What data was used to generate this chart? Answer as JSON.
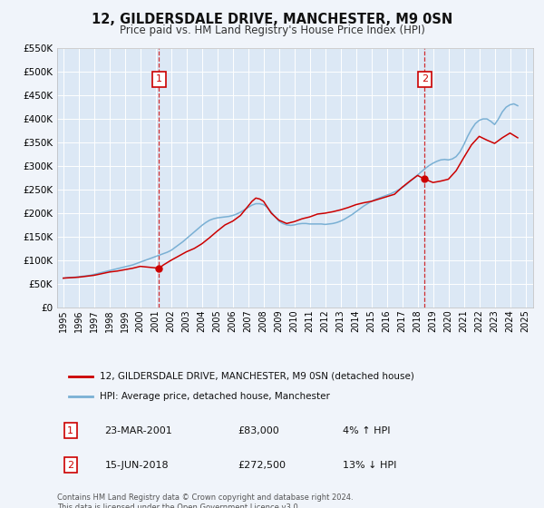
{
  "title": "12, GILDERSDALE DRIVE, MANCHESTER, M9 0SN",
  "subtitle": "Price paid vs. HM Land Registry's House Price Index (HPI)",
  "background_color": "#f0f4fa",
  "plot_bg_color": "#dce8f5",
  "ylim": [
    0,
    550000
  ],
  "yticks": [
    0,
    50000,
    100000,
    150000,
    200000,
    250000,
    300000,
    350000,
    400000,
    450000,
    500000,
    550000
  ],
  "ytick_labels": [
    "£0",
    "£50K",
    "£100K",
    "£150K",
    "£200K",
    "£250K",
    "£300K",
    "£350K",
    "£400K",
    "£450K",
    "£500K",
    "£550K"
  ],
  "xlim_start": 1994.6,
  "xlim_end": 2025.5,
  "xticks": [
    1995,
    1996,
    1997,
    1998,
    1999,
    2000,
    2001,
    2002,
    2003,
    2004,
    2005,
    2006,
    2007,
    2008,
    2009,
    2010,
    2011,
    2012,
    2013,
    2014,
    2015,
    2016,
    2017,
    2018,
    2019,
    2020,
    2021,
    2022,
    2023,
    2024,
    2025
  ],
  "marker1_x": 2001.22,
  "marker1_y": 83000,
  "marker1_label": "1",
  "marker1_date": "23-MAR-2001",
  "marker1_price": "£83,000",
  "marker1_hpi": "4% ↑ HPI",
  "marker2_x": 2018.45,
  "marker2_y": 272500,
  "marker2_label": "2",
  "marker2_date": "15-JUN-2018",
  "marker2_price": "£272,500",
  "marker2_hpi": "13% ↓ HPI",
  "vline1_x": 2001.22,
  "vline2_x": 2018.45,
  "red_line_color": "#cc0000",
  "blue_line_color": "#7ab0d4",
  "legend_label_red": "12, GILDERSDALE DRIVE, MANCHESTER, M9 0SN (detached house)",
  "legend_label_blue": "HPI: Average price, detached house, Manchester",
  "footer_text": "Contains HM Land Registry data © Crown copyright and database right 2024.\nThis data is licensed under the Open Government Licence v3.0.",
  "hpi_x": [
    1995.0,
    1995.25,
    1995.5,
    1995.75,
    1996.0,
    1996.25,
    1996.5,
    1996.75,
    1997.0,
    1997.25,
    1997.5,
    1997.75,
    1998.0,
    1998.25,
    1998.5,
    1998.75,
    1999.0,
    1999.25,
    1999.5,
    1999.75,
    2000.0,
    2000.25,
    2000.5,
    2000.75,
    2001.0,
    2001.25,
    2001.5,
    2001.75,
    2002.0,
    2002.25,
    2002.5,
    2002.75,
    2003.0,
    2003.25,
    2003.5,
    2003.75,
    2004.0,
    2004.25,
    2004.5,
    2004.75,
    2005.0,
    2005.25,
    2005.5,
    2005.75,
    2006.0,
    2006.25,
    2006.5,
    2006.75,
    2007.0,
    2007.25,
    2007.5,
    2007.75,
    2008.0,
    2008.25,
    2008.5,
    2008.75,
    2009.0,
    2009.25,
    2009.5,
    2009.75,
    2010.0,
    2010.25,
    2010.5,
    2010.75,
    2011.0,
    2011.25,
    2011.5,
    2011.75,
    2012.0,
    2012.25,
    2012.5,
    2012.75,
    2013.0,
    2013.25,
    2013.5,
    2013.75,
    2014.0,
    2014.25,
    2014.5,
    2014.75,
    2015.0,
    2015.25,
    2015.5,
    2015.75,
    2016.0,
    2016.25,
    2016.5,
    2016.75,
    2017.0,
    2017.25,
    2017.5,
    2017.75,
    2018.0,
    2018.25,
    2018.5,
    2018.75,
    2019.0,
    2019.25,
    2019.5,
    2019.75,
    2020.0,
    2020.25,
    2020.5,
    2020.75,
    2021.0,
    2021.25,
    2021.5,
    2021.75,
    2022.0,
    2022.25,
    2022.5,
    2022.75,
    2023.0,
    2023.25,
    2023.5,
    2023.75,
    2024.0,
    2024.25,
    2024.5
  ],
  "hpi_y": [
    62000,
    63000,
    63500,
    64000,
    65000,
    66000,
    67000,
    68000,
    70000,
    72000,
    74000,
    76000,
    78000,
    80000,
    82000,
    84000,
    86000,
    88000,
    90000,
    93000,
    96000,
    99000,
    102000,
    105000,
    108000,
    111000,
    114000,
    117000,
    121000,
    127000,
    133000,
    139000,
    146000,
    153000,
    160000,
    167000,
    174000,
    180000,
    185000,
    188000,
    190000,
    191000,
    192000,
    193000,
    195000,
    198000,
    202000,
    207000,
    212000,
    217000,
    220000,
    220000,
    218000,
    212000,
    202000,
    192000,
    183000,
    178000,
    175000,
    174000,
    175000,
    177000,
    178000,
    178000,
    177000,
    177000,
    177000,
    177000,
    176000,
    177000,
    178000,
    180000,
    183000,
    187000,
    192000,
    197000,
    203000,
    209000,
    215000,
    220000,
    225000,
    229000,
    232000,
    235000,
    238000,
    241000,
    245000,
    249000,
    254000,
    260000,
    267000,
    274000,
    281000,
    288000,
    295000,
    301000,
    306000,
    310000,
    313000,
    314000,
    313000,
    315000,
    320000,
    330000,
    345000,
    363000,
    378000,
    390000,
    397000,
    400000,
    400000,
    395000,
    388000,
    400000,
    415000,
    425000,
    430000,
    432000,
    428000
  ],
  "price_x": [
    1995.0,
    1995.5,
    1996.0,
    1997.0,
    1998.0,
    1998.5,
    1999.0,
    1999.5,
    2000.0,
    2001.22,
    2001.5,
    2002.0,
    2003.0,
    2003.5,
    2004.0,
    2004.5,
    2005.0,
    2005.5,
    2006.0,
    2006.5,
    2007.0,
    2007.25,
    2007.5,
    2007.75,
    2008.0,
    2008.5,
    2009.0,
    2009.5,
    2010.0,
    2010.5,
    2011.0,
    2011.5,
    2012.0,
    2012.5,
    2013.0,
    2013.5,
    2014.0,
    2014.5,
    2015.0,
    2015.5,
    2016.0,
    2016.5,
    2017.0,
    2017.5,
    2018.0,
    2018.45,
    2019.0,
    2019.5,
    2020.0,
    2020.5,
    2021.0,
    2021.5,
    2022.0,
    2022.5,
    2023.0,
    2023.5,
    2024.0,
    2024.5
  ],
  "price_y": [
    62000,
    63000,
    64000,
    68000,
    75000,
    77000,
    80000,
    83000,
    87000,
    83000,
    90000,
    100000,
    118000,
    125000,
    135000,
    148000,
    162000,
    175000,
    183000,
    195000,
    215000,
    225000,
    232000,
    230000,
    225000,
    200000,
    185000,
    178000,
    182000,
    188000,
    192000,
    198000,
    200000,
    203000,
    207000,
    212000,
    218000,
    222000,
    225000,
    230000,
    235000,
    240000,
    255000,
    268000,
    280000,
    272500,
    265000,
    268000,
    272000,
    290000,
    318000,
    345000,
    363000,
    355000,
    348000,
    360000,
    370000,
    360000
  ]
}
